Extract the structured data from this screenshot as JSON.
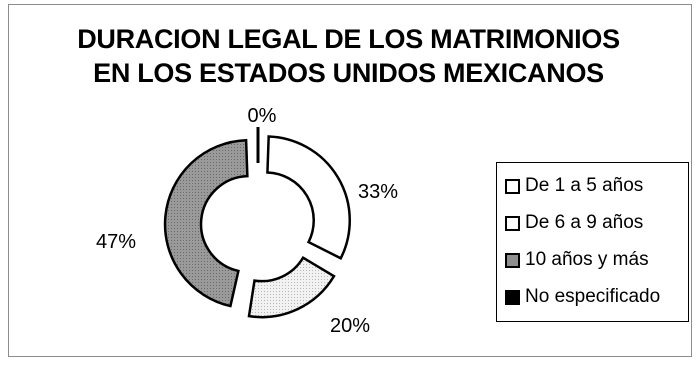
{
  "chart_data": {
    "type": "pie",
    "variant": "exploded-donut",
    "title": "DURACION LEGAL DE LOS MATRIMONIOS EN LOS ESTADOS UNIDOS MEXICANOS",
    "title_lines": [
      "DURACION LEGAL DE LOS MATRIMONIOS",
      "EN LOS ESTADOS UNIDOS MEXICANOS"
    ],
    "legend_position": "right",
    "slices": [
      {
        "name": "De 1 a 5 años",
        "value": 33,
        "label": "33%",
        "color": "#ffffff"
      },
      {
        "name": "De 6 a 9 años",
        "value": 20,
        "label": "20%",
        "color": "#e8e8e8"
      },
      {
        "name": "10 años y más",
        "value": 47,
        "label": "47%",
        "color": "#8f8f8f"
      },
      {
        "name": "No especificado",
        "value": 0,
        "label": "0%",
        "color": "#000000"
      }
    ]
  }
}
